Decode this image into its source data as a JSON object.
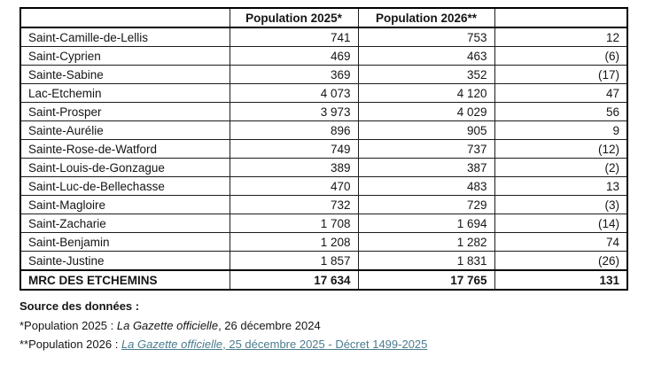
{
  "table": {
    "headers": {
      "name": "",
      "pop2025": "Population 2025*",
      "pop2026": "Population 2026**",
      "diff": ""
    },
    "rows": [
      {
        "name": "Saint-Camille-de-Lellis",
        "pop2025": "741",
        "pop2026": "753",
        "diff": "12"
      },
      {
        "name": "Saint-Cyprien",
        "pop2025": "469",
        "pop2026": "463",
        "diff": "(6)"
      },
      {
        "name": "Sainte-Sabine",
        "pop2025": "369",
        "pop2026": "352",
        "diff": "(17)"
      },
      {
        "name": "Lac-Etchemin",
        "pop2025": "4 073",
        "pop2026": "4 120",
        "diff": "47"
      },
      {
        "name": "Saint-Prosper",
        "pop2025": "3 973",
        "pop2026": "4 029",
        "diff": "56"
      },
      {
        "name": "Sainte-Aurélie",
        "pop2025": "896",
        "pop2026": "905",
        "diff": "9"
      },
      {
        "name": "Sainte-Rose-de-Watford",
        "pop2025": "749",
        "pop2026": "737",
        "diff": "(12)"
      },
      {
        "name": "Saint-Louis-de-Gonzague",
        "pop2025": "389",
        "pop2026": "387",
        "diff": "(2)"
      },
      {
        "name": "Saint-Luc-de-Bellechasse",
        "pop2025": "470",
        "pop2026": "483",
        "diff": "13"
      },
      {
        "name": "Saint-Magloire",
        "pop2025": "732",
        "pop2026": "729",
        "diff": "(3)"
      },
      {
        "name": "Saint-Zacharie",
        "pop2025": "1 708",
        "pop2026": "1 694",
        "diff": "(14)"
      },
      {
        "name": "Saint-Benjamin",
        "pop2025": "1 208",
        "pop2026": "1 282",
        "diff": "74"
      },
      {
        "name": "Sainte-Justine",
        "pop2025": "1 857",
        "pop2026": "1 831",
        "diff": "(26)"
      }
    ],
    "total": {
      "name": "MRC DES ETCHEMINS",
      "pop2025": "17 634",
      "pop2026": "17 765",
      "diff": "131"
    }
  },
  "footer": {
    "source_label": "Source des données :",
    "note_2025_prefix": "*Population 2025 : ",
    "note_2025_italic": "La Gazette officielle",
    "note_2025_suffix": ", 26 décembre 2024",
    "note_2026_prefix": "**Population 2026 : ",
    "note_2026_link_italic": "La Gazette officielle",
    "note_2026_link_rest": ", 25 décembre 2025 - Décret 1499-2025"
  },
  "colors": {
    "link": "#4a7c8e",
    "border": "#000000",
    "text": "#151515",
    "background": "#ffffff"
  }
}
